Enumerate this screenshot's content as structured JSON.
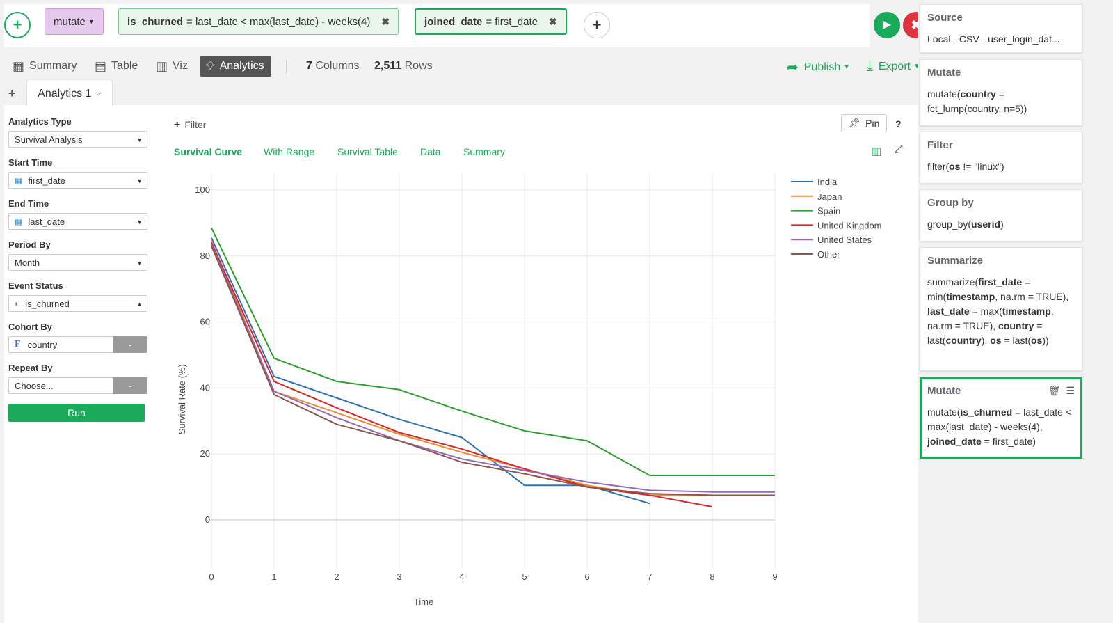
{
  "commands": {
    "verb": "mutate",
    "expr1": {
      "name": "is_churned",
      "value": "= last_date < max(last_date) - weeks(4)"
    },
    "expr2": {
      "name": "joined_date",
      "value": "= first_date"
    }
  },
  "tabs": {
    "summary": "Summary",
    "table": "Table",
    "viz": "Viz",
    "analytics": "Analytics"
  },
  "stats": {
    "columns_count": "7",
    "columns_label": "Columns",
    "rows_count": "2,511",
    "rows_label": "Rows"
  },
  "actions": {
    "publish": "Publish",
    "export": "Export"
  },
  "analytics_tab": "Analytics 1",
  "config": {
    "analytics_type_label": "Analytics Type",
    "analytics_type": "Survival Analysis",
    "start_time_label": "Start Time",
    "start_time": "first_date",
    "end_time_label": "End Time",
    "end_time": "last_date",
    "period_by_label": "Period By",
    "period_by": "Month",
    "event_status_label": "Event Status",
    "event_status": "is_churned",
    "cohort_by_label": "Cohort By",
    "cohort_by": "country",
    "cohort_by_btn": "-",
    "repeat_by_label": "Repeat By",
    "repeat_by": "Choose...",
    "repeat_by_btn": "-",
    "run": "Run"
  },
  "filter_label": "Filter",
  "pin_label": "Pin",
  "help_label": "?",
  "chart_tabs": [
    "Survival Curve",
    "With Range",
    "Survival Table",
    "Data",
    "Summary"
  ],
  "chart_data": {
    "type": "line",
    "xlabel": "Time",
    "ylabel": "Survival Rate (%)",
    "x": [
      0,
      1,
      2,
      3,
      4,
      5,
      6,
      7,
      8,
      9
    ],
    "xlim": [
      0,
      9
    ],
    "ylim": [
      -15,
      105
    ],
    "yticks": [
      0,
      20,
      40,
      60,
      80,
      100
    ],
    "grid": true,
    "legend_position": "top-right",
    "series": [
      {
        "name": "India",
        "color": "#2c73b5",
        "values": [
          85.5,
          43.5,
          37,
          30.5,
          25,
          10.5,
          10.5,
          5,
          null,
          null
        ]
      },
      {
        "name": "Japan",
        "color": "#f08a2c",
        "values": [
          84.5,
          39,
          32.5,
          26,
          20.5,
          15.5,
          10.5,
          7.5,
          7.5,
          7.5
        ]
      },
      {
        "name": "Spain",
        "color": "#2ca02c",
        "values": [
          88.5,
          49,
          42,
          39.5,
          33,
          27,
          24,
          13.5,
          13.5,
          13.5
        ]
      },
      {
        "name": "United Kingdom",
        "color": "#d62728",
        "values": [
          84,
          42,
          34,
          26.5,
          21.5,
          15.5,
          10,
          7.5,
          4,
          null
        ]
      },
      {
        "name": "United States",
        "color": "#9467bd",
        "values": [
          83.5,
          39,
          31,
          24,
          18.5,
          15,
          11.5,
          9,
          8.5,
          8.5
        ]
      },
      {
        "name": "Other",
        "color": "#8c564b",
        "values": [
          83,
          38,
          29,
          24,
          17.5,
          14,
          10,
          8,
          7.5,
          7.5
        ]
      }
    ]
  },
  "steps": [
    {
      "title": "Source",
      "body": "Local - CSV - user_login_dat..."
    },
    {
      "title": "Mutate",
      "body_html": "mutate(<b>country</b> = fct_lump(country, n=5))"
    },
    {
      "title": "Filter",
      "body_html": "filter(<b>os</b> != \"linux\")"
    },
    {
      "title": "Group by",
      "body_html": "group_by(<b>userid</b>)"
    },
    {
      "title": "Summarize",
      "body_html": "summarize(<b>first_date</b> = min(<b>timestamp</b>, na.rm = TRUE), <b>last_date</b> = max(<b>timestamp</b>, na.rm = TRUE), <b>country</b> = last(<b>country</b>), <b>os</b> = last(<b>os</b>))"
    },
    {
      "title": "Mutate",
      "body_html": "mutate(<b>is_churned</b> = last_date &lt; max(last_date) - weeks(4), <b>joined_date</b> = first_date)"
    }
  ]
}
